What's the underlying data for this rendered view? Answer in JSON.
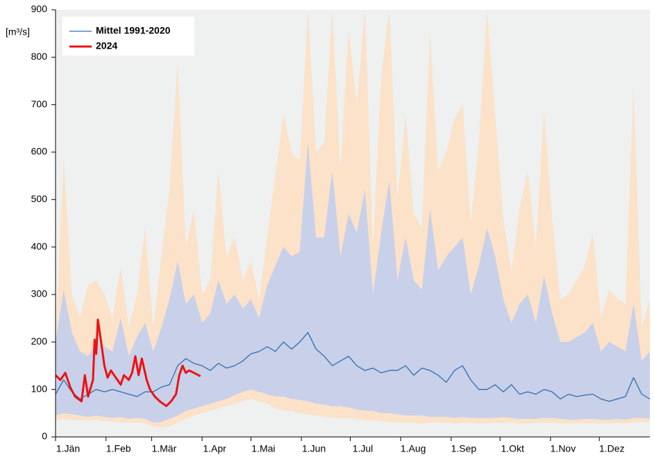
{
  "chart_data": {
    "type": "line",
    "y_label": "[m³/s]",
    "xlim": [
      0,
      365
    ],
    "ylim": [
      0,
      900
    ],
    "yticks": [
      0,
      100,
      200,
      300,
      400,
      500,
      600,
      700,
      800,
      900
    ],
    "xticks": [
      {
        "value": 0,
        "label": "1.Jän"
      },
      {
        "value": 31,
        "label": "1.Feb"
      },
      {
        "value": 59,
        "label": "1.Mär"
      },
      {
        "value": 90,
        "label": "1.Apr"
      },
      {
        "value": 120,
        "label": "1.Mai"
      },
      {
        "value": 151,
        "label": "1.Jun"
      },
      {
        "value": 181,
        "label": "1.Jul"
      },
      {
        "value": 212,
        "label": "1.Aug"
      },
      {
        "value": 243,
        "label": "1.Sep"
      },
      {
        "value": 273,
        "label": "1.Okt"
      },
      {
        "value": 304,
        "label": "1.Nov"
      },
      {
        "value": 334,
        "label": "1.Dez"
      }
    ],
    "background": "#eef1f0",
    "x": [
      0,
      5,
      10,
      15,
      20,
      25,
      30,
      35,
      40,
      45,
      50,
      55,
      60,
      65,
      70,
      75,
      80,
      85,
      90,
      95,
      100,
      105,
      110,
      115,
      120,
      125,
      130,
      135,
      140,
      145,
      150,
      155,
      160,
      165,
      170,
      175,
      180,
      185,
      190,
      195,
      200,
      205,
      210,
      215,
      220,
      225,
      230,
      235,
      240,
      245,
      250,
      255,
      260,
      265,
      270,
      275,
      280,
      285,
      290,
      295,
      300,
      305,
      310,
      315,
      320,
      325,
      330,
      335,
      340,
      345,
      350,
      355,
      360,
      365
    ],
    "bands": [
      {
        "color": "#fbe2c8",
        "upper": [
          200,
          590,
          300,
          250,
          320,
          330,
          300,
          250,
          360,
          230,
          300,
          440,
          230,
          380,
          520,
          790,
          400,
          480,
          300,
          330,
          560,
          380,
          420,
          330,
          370,
          290,
          420,
          550,
          680,
          600,
          580,
          900,
          600,
          620,
          900,
          560,
          860,
          700,
          900,
          400,
          760,
          900,
          500,
          680,
          470,
          440,
          850,
          560,
          600,
          670,
          700,
          450,
          620,
          900,
          680,
          460,
          350,
          480,
          560,
          400,
          690,
          460,
          290,
          300,
          330,
          360,
          430,
          250,
          310,
          290,
          280,
          740,
          230,
          290
        ],
        "lower": [
          35,
          38,
          36,
          35,
          34,
          36,
          33,
          32,
          30,
          30,
          30,
          28,
          22,
          20,
          22,
          30,
          38,
          45,
          50,
          55,
          60,
          65,
          70,
          75,
          80,
          75,
          70,
          60,
          55,
          55,
          50,
          48,
          45,
          42,
          40,
          40,
          40,
          38,
          35,
          35,
          33,
          32,
          30,
          30,
          30,
          28,
          30,
          30,
          30,
          28,
          30,
          30,
          28,
          28,
          30,
          30,
          30,
          28,
          28,
          30,
          30,
          30,
          28,
          28,
          28,
          28,
          30,
          28,
          28,
          30,
          28,
          30,
          32,
          30
        ]
      },
      {
        "color": "#c8d0ea",
        "upper": [
          200,
          310,
          220,
          180,
          170,
          200,
          190,
          180,
          250,
          170,
          210,
          240,
          180,
          230,
          290,
          370,
          280,
          300,
          240,
          260,
          330,
          280,
          300,
          270,
          290,
          250,
          320,
          360,
          400,
          380,
          390,
          620,
          420,
          420,
          560,
          380,
          470,
          430,
          520,
          300,
          430,
          540,
          330,
          420,
          330,
          310,
          480,
          350,
          380,
          400,
          420,
          300,
          360,
          440,
          380,
          290,
          240,
          280,
          300,
          240,
          340,
          260,
          200,
          200,
          210,
          220,
          240,
          180,
          200,
          190,
          180,
          280,
          160,
          180
        ],
        "lower": [
          45,
          50,
          48,
          45,
          42,
          45,
          42,
          40,
          42,
          38,
          40,
          38,
          30,
          32,
          38,
          45,
          55,
          60,
          65,
          70,
          75,
          80,
          88,
          95,
          100,
          95,
          90,
          85,
          85,
          80,
          78,
          75,
          70,
          68,
          65,
          65,
          62,
          58,
          55,
          55,
          50,
          50,
          48,
          45,
          45,
          45,
          42,
          42,
          42,
          40,
          42,
          40,
          40,
          40,
          40,
          42,
          40,
          38,
          38,
          38,
          40,
          40,
          38,
          36,
          36,
          38,
          38,
          36,
          36,
          38,
          36,
          40,
          40,
          38
        ]
      }
    ],
    "series": [
      {
        "name": "Mittel 1991-2020",
        "color": "#2f6eab",
        "width": 1.3,
        "x": [
          0,
          5,
          10,
          15,
          20,
          25,
          30,
          35,
          40,
          45,
          50,
          55,
          60,
          65,
          70,
          75,
          80,
          85,
          90,
          95,
          100,
          105,
          110,
          115,
          120,
          125,
          130,
          135,
          140,
          145,
          150,
          155,
          160,
          165,
          170,
          175,
          180,
          185,
          190,
          195,
          200,
          205,
          210,
          215,
          220,
          225,
          230,
          235,
          240,
          245,
          250,
          255,
          260,
          265,
          270,
          275,
          280,
          285,
          290,
          295,
          300,
          305,
          310,
          315,
          320,
          325,
          330,
          335,
          340,
          345,
          350,
          355,
          360,
          365
        ],
        "values": [
          90,
          120,
          95,
          80,
          90,
          100,
          95,
          100,
          95,
          90,
          85,
          95,
          95,
          105,
          110,
          150,
          165,
          155,
          150,
          140,
          155,
          145,
          150,
          160,
          175,
          180,
          190,
          180,
          200,
          185,
          200,
          220,
          185,
          170,
          150,
          160,
          170,
          150,
          140,
          145,
          135,
          140,
          140,
          150,
          130,
          145,
          140,
          130,
          115,
          140,
          150,
          120,
          100,
          100,
          110,
          95,
          110,
          90,
          95,
          90,
          100,
          95,
          80,
          90,
          85,
          88,
          90,
          80,
          75,
          80,
          85,
          125,
          90,
          80
        ]
      },
      {
        "name": "2024",
        "color": "#ee1111",
        "width": 3,
        "x": [
          0,
          3,
          6,
          9,
          12,
          16,
          18,
          20,
          23,
          24,
          25,
          26,
          28,
          30,
          32,
          34,
          38,
          40,
          42,
          45,
          47,
          49,
          51,
          53,
          56,
          58,
          61,
          64,
          68,
          71,
          74,
          76,
          78,
          80,
          82,
          85,
          89
        ],
        "values": [
          130,
          120,
          135,
          105,
          85,
          75,
          130,
          85,
          120,
          205,
          175,
          247,
          200,
          150,
          125,
          140,
          120,
          110,
          130,
          120,
          135,
          170,
          130,
          165,
          120,
          100,
          85,
          75,
          65,
          75,
          90,
          130,
          150,
          135,
          140,
          135,
          128
        ]
      }
    ]
  }
}
